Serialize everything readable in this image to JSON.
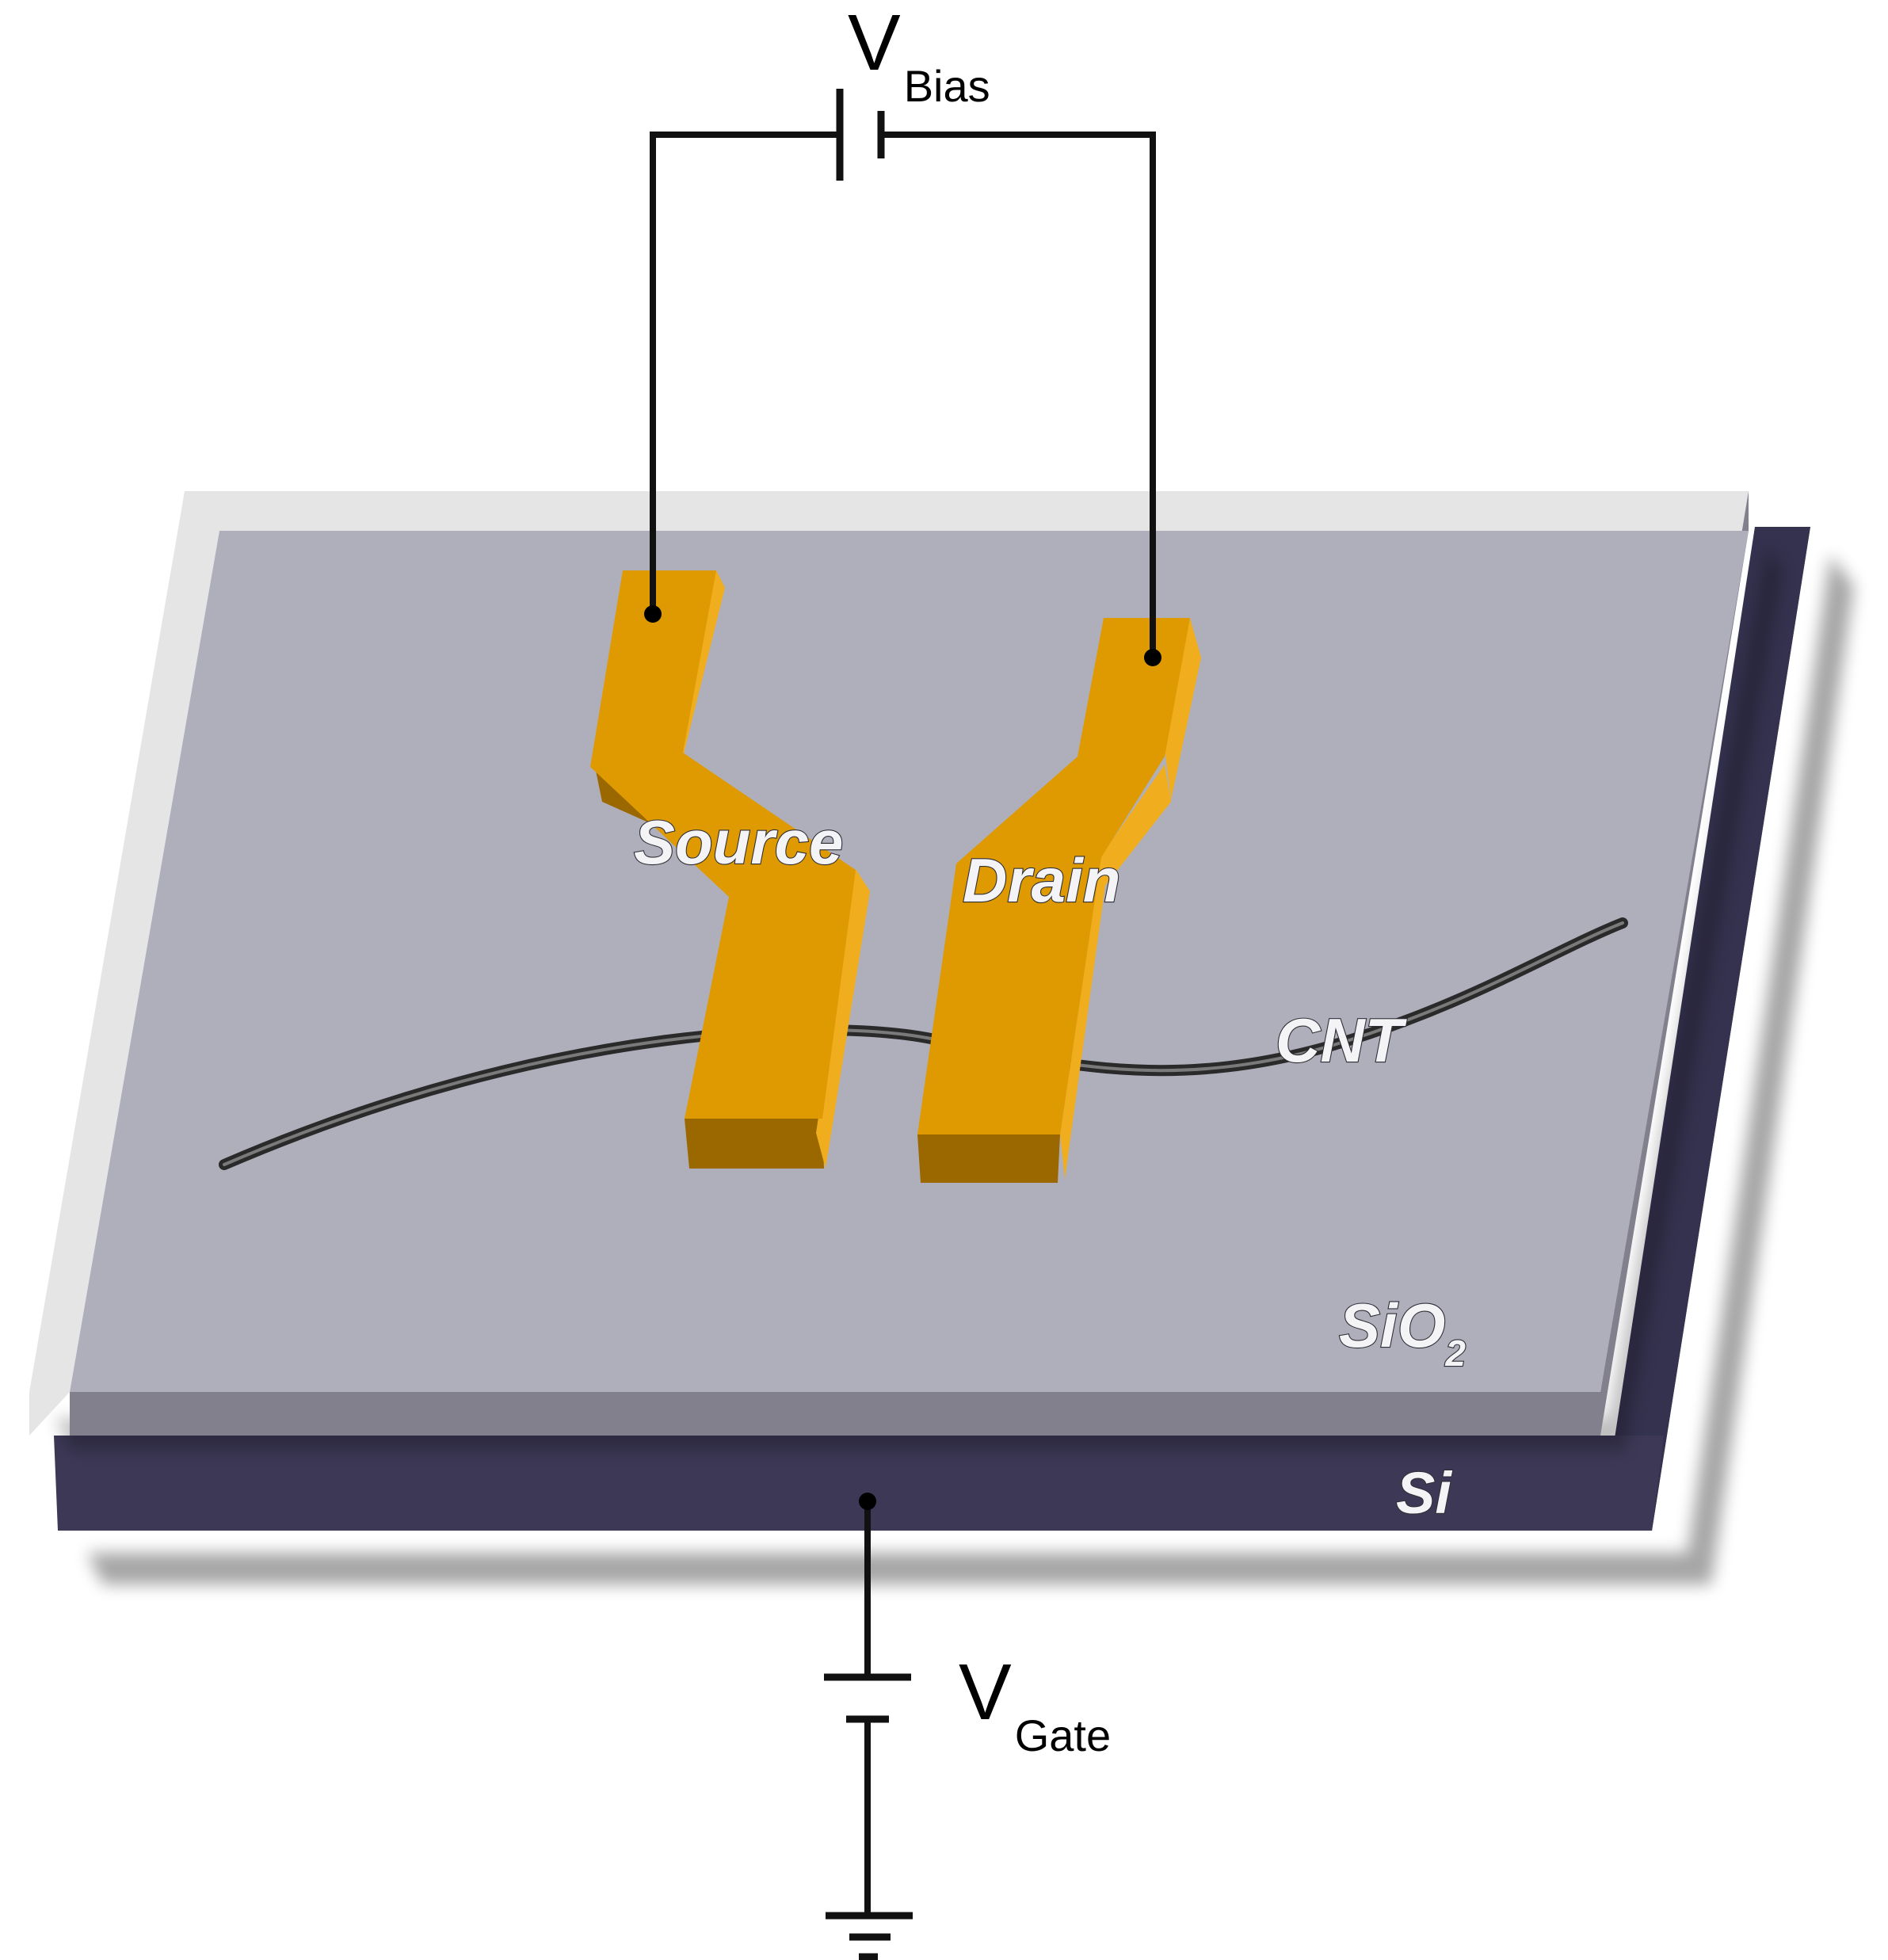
{
  "labels": {
    "v_bias": {
      "main": "V",
      "sub": "Bias"
    },
    "v_gate": {
      "main": "V",
      "sub": "Gate"
    },
    "source": "Source",
    "drain": "Drain",
    "cnt": "CNT",
    "sio2": {
      "main": "SiO",
      "sub": "2"
    },
    "si": "Si"
  },
  "colors": {
    "electrode_top": "#de9a00",
    "electrode_side_light": "#f0ad1e",
    "electrode_side_dark": "#9b6800",
    "sio2_top": "#afafbc",
    "sio2_left_edge": "#e5e5e5",
    "sio2_front_edge": "#83808e",
    "si_top": "#3d3a58",
    "si_front": "#3c3856",
    "wire": "#111111",
    "cnt": "#2a2a2a"
  }
}
